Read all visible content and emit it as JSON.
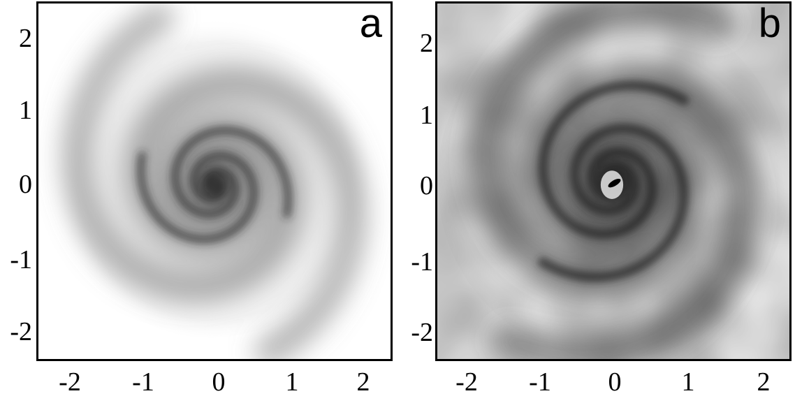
{
  "panels": [
    {
      "id": "a",
      "label": "a",
      "x_ticks": [
        "-2",
        "-1",
        "0",
        "1",
        "2"
      ],
      "y_ticks": [
        "2",
        "1",
        "0",
        "-1",
        "-2"
      ],
      "x_range": [
        -2.5,
        2.5
      ],
      "y_range": [
        -2.5,
        2.5
      ],
      "style": "smooth grayscale two-armed spiral"
    },
    {
      "id": "b",
      "label": "b",
      "x_ticks": [
        "-2",
        "-1",
        "0",
        "1",
        "2"
      ],
      "y_ticks": [
        "2",
        "1",
        "0",
        "-1"
      ],
      "y_ticks_lower": [
        "-2"
      ],
      "x_range": [
        -2.5,
        2.5
      ],
      "y_range": [
        -2.5,
        2.5
      ],
      "style": "noisy grayscale two-armed spiral"
    }
  ],
  "colors": {
    "ink": "#000000",
    "background": "#ffffff",
    "arm_dark": "#2a2a2a",
    "halo": "#9a9a9a"
  }
}
